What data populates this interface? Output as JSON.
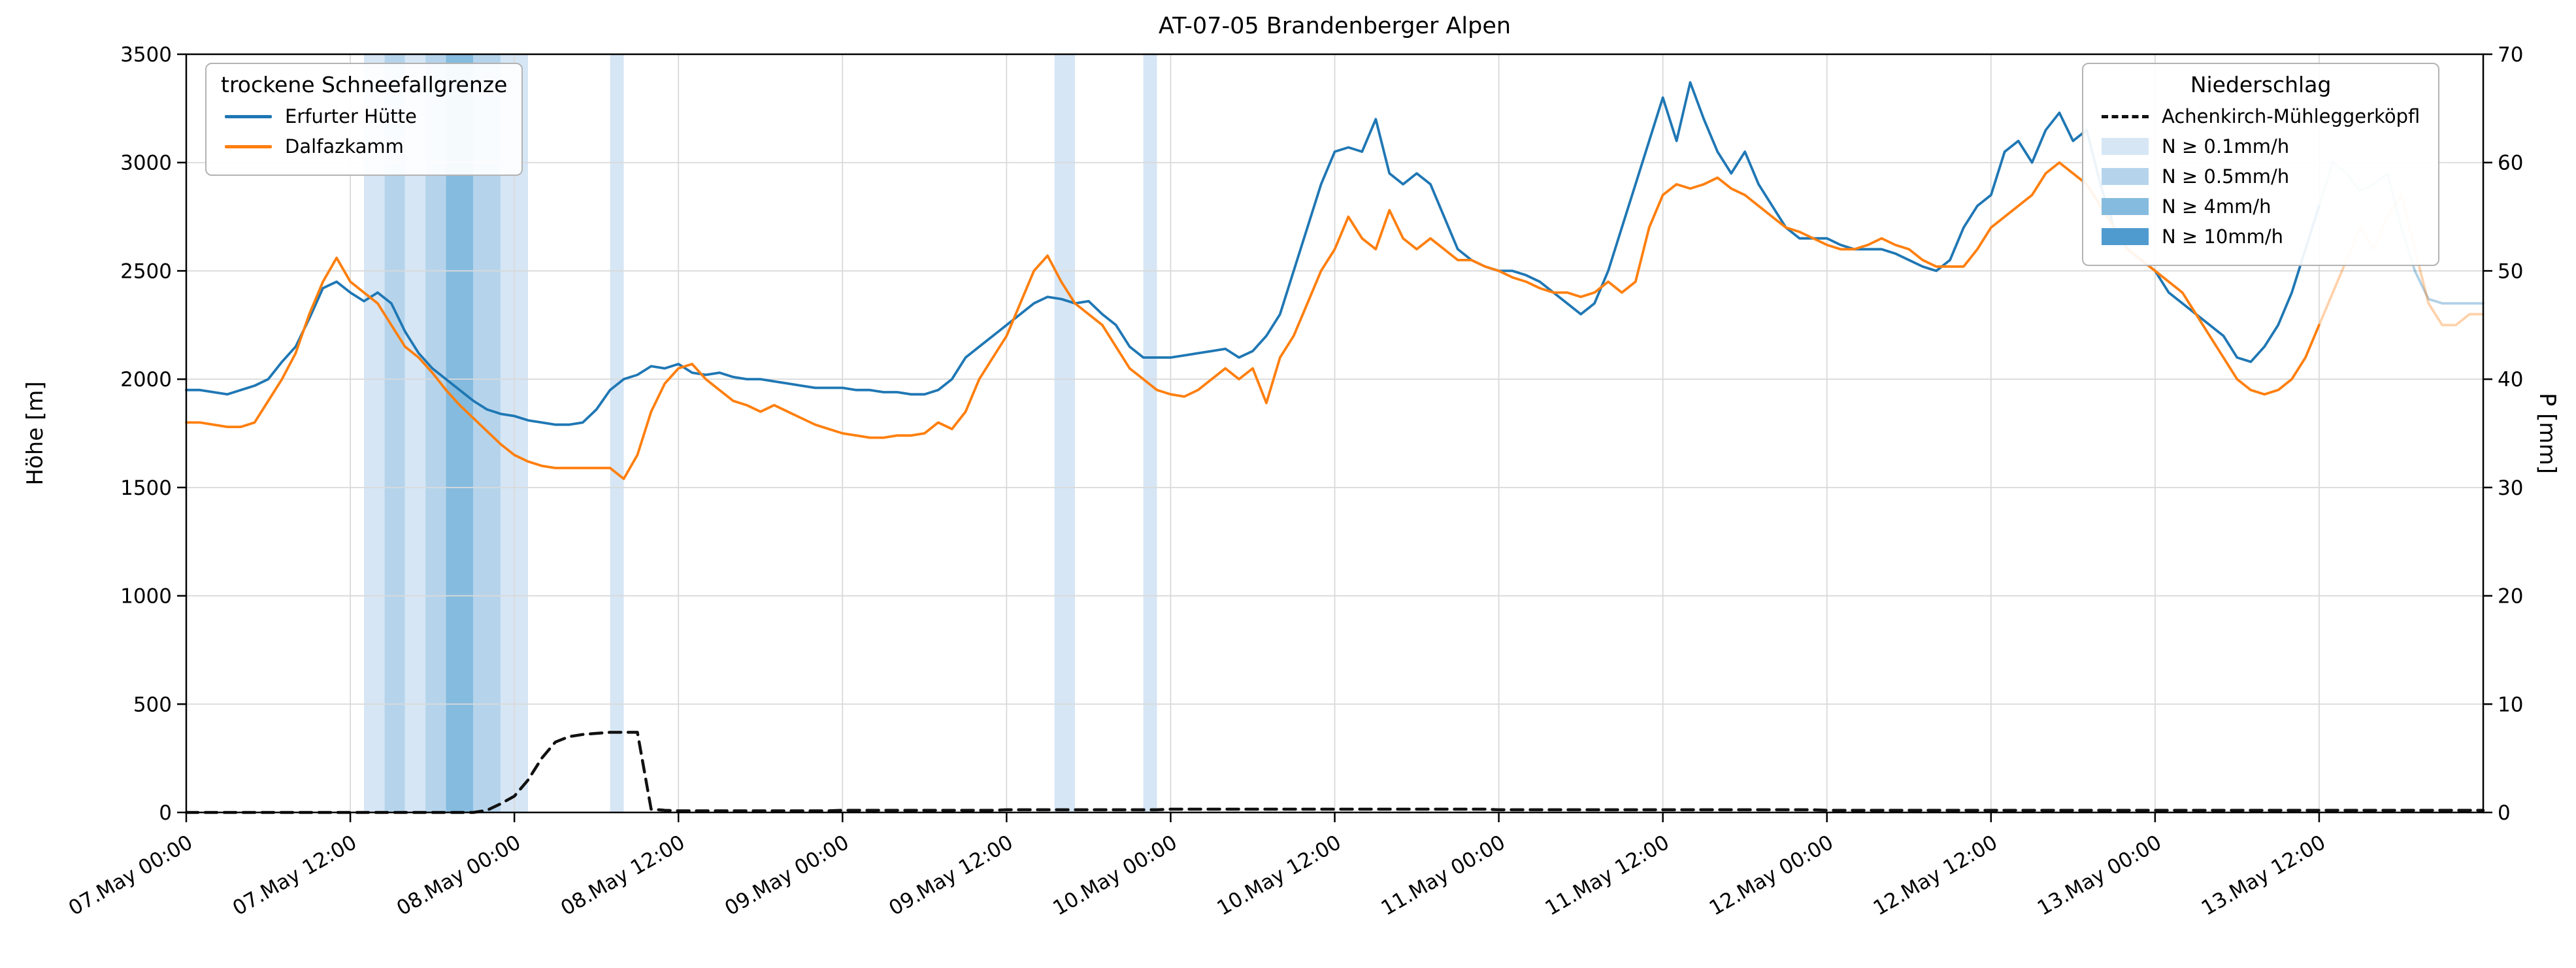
{
  "chart_data": {
    "type": "line",
    "title": "AT-07-05 Brandenberger Alpen",
    "ylabel_left": "Höhe [m]",
    "ylabel_right": "P [mm]",
    "ylim_left": [
      0,
      3500
    ],
    "ylim_right": [
      0,
      70
    ],
    "xlim_hours": [
      0,
      168
    ],
    "grid": true,
    "forecast_fade_from_hour": 156,
    "x_ticks": [
      {
        "hour": 0,
        "label": "07.May 00:00"
      },
      {
        "hour": 12,
        "label": "07.May 12:00"
      },
      {
        "hour": 24,
        "label": "08.May 00:00"
      },
      {
        "hour": 36,
        "label": "08.May 12:00"
      },
      {
        "hour": 48,
        "label": "09.May 00:00"
      },
      {
        "hour": 60,
        "label": "09.May 12:00"
      },
      {
        "hour": 72,
        "label": "10.May 00:00"
      },
      {
        "hour": 84,
        "label": "10.May 12:00"
      },
      {
        "hour": 96,
        "label": "11.May 00:00"
      },
      {
        "hour": 108,
        "label": "11.May 12:00"
      },
      {
        "hour": 120,
        "label": "12.May 00:00"
      },
      {
        "hour": 132,
        "label": "12.May 12:00"
      },
      {
        "hour": 144,
        "label": "13.May 00:00"
      },
      {
        "hour": 156,
        "label": "13.May 12:00"
      }
    ],
    "y_ticks_left": [
      0,
      500,
      1000,
      1500,
      2000,
      2500,
      3000,
      3500
    ],
    "y_ticks_right": [
      0,
      10,
      20,
      30,
      40,
      50,
      60,
      70
    ],
    "series": [
      {
        "name": "Erfurter Hütte",
        "color": "#1f77b4",
        "axis": "left",
        "dash": false,
        "x_start_hour": 0,
        "x_step_hours": 1,
        "values": [
          1950,
          1950,
          1940,
          1930,
          1950,
          1970,
          2000,
          2080,
          2150,
          2280,
          2420,
          2450,
          2400,
          2360,
          2400,
          2350,
          2220,
          2120,
          2050,
          2000,
          1950,
          1900,
          1860,
          1840,
          1830,
          1810,
          1800,
          1790,
          1790,
          1800,
          1860,
          1950,
          2000,
          2020,
          2060,
          2050,
          2070,
          2030,
          2020,
          2030,
          2010,
          2000,
          2000,
          1990,
          1980,
          1970,
          1960,
          1960,
          1960,
          1950,
          1950,
          1940,
          1940,
          1930,
          1930,
          1950,
          2000,
          2100,
          2150,
          2200,
          2250,
          2300,
          2350,
          2380,
          2370,
          2350,
          2360,
          2300,
          2250,
          2150,
          2100,
          2100,
          2100,
          2110,
          2120,
          2130,
          2140,
          2100,
          2130,
          2200,
          2300,
          2500,
          2700,
          2900,
          3050,
          3070,
          3050,
          3200,
          2950,
          2900,
          2950,
          2900,
          2750,
          2600,
          2550,
          2520,
          2500,
          2500,
          2480,
          2450,
          2400,
          2350,
          2300,
          2350,
          2500,
          2700,
          2900,
          3100,
          3300,
          3100,
          3370,
          3200,
          3050,
          2950,
          3050,
          2900,
          2800,
          2700,
          2650,
          2650,
          2650,
          2620,
          2600,
          2600,
          2600,
          2580,
          2550,
          2520,
          2500,
          2550,
          2700,
          2800,
          2850,
          3050,
          3100,
          3000,
          3150,
          3230,
          3100,
          3150,
          2900,
          2700,
          2600,
          2550,
          2500,
          2400,
          2350,
          2300,
          2250,
          2200,
          2100,
          2080,
          2150,
          2250,
          2400,
          2600,
          2800,
          3000,
          2950,
          2870,
          2900,
          2950,
          2700,
          2500,
          2370,
          2350,
          2350,
          2350,
          2350
        ]
      },
      {
        "name": "Dalfazkamm",
        "color": "#ff7f0e",
        "axis": "left",
        "dash": false,
        "x_start_hour": 0,
        "x_step_hours": 1,
        "values": [
          1800,
          1800,
          1790,
          1780,
          1780,
          1800,
          1900,
          2000,
          2120,
          2300,
          2450,
          2560,
          2450,
          2400,
          2350,
          2250,
          2150,
          2100,
          2030,
          1950,
          1880,
          1820,
          1760,
          1700,
          1650,
          1620,
          1600,
          1590,
          1590,
          1590,
          1590,
          1590,
          1540,
          1650,
          1850,
          1980,
          2050,
          2070,
          2000,
          1950,
          1900,
          1880,
          1850,
          1880,
          1850,
          1820,
          1790,
          1770,
          1750,
          1740,
          1730,
          1730,
          1740,
          1740,
          1750,
          1800,
          1770,
          1850,
          2000,
          2100,
          2200,
          2350,
          2500,
          2570,
          2450,
          2350,
          2300,
          2250,
          2150,
          2050,
          2000,
          1950,
          1930,
          1920,
          1950,
          2000,
          2050,
          2000,
          2050,
          1890,
          2100,
          2200,
          2350,
          2500,
          2600,
          2750,
          2650,
          2600,
          2780,
          2650,
          2600,
          2650,
          2600,
          2550,
          2550,
          2520,
          2500,
          2470,
          2450,
          2420,
          2400,
          2400,
          2380,
          2400,
          2450,
          2400,
          2450,
          2700,
          2850,
          2900,
          2880,
          2900,
          2930,
          2880,
          2850,
          2800,
          2750,
          2700,
          2680,
          2650,
          2620,
          2600,
          2600,
          2620,
          2650,
          2620,
          2600,
          2550,
          2520,
          2520,
          2520,
          2600,
          2700,
          2750,
          2800,
          2850,
          2950,
          3000,
          2950,
          2900,
          2800,
          2700,
          2600,
          2550,
          2500,
          2450,
          2400,
          2300,
          2200,
          2100,
          2000,
          1950,
          1930,
          1950,
          2000,
          2100,
          2250,
          2400,
          2550,
          2700,
          2600,
          2750,
          2850,
          2600,
          2350,
          2250,
          2250,
          2300,
          2300
        ]
      },
      {
        "name": "Achenkirch-Mühleggerköpfl",
        "color": "#111111",
        "axis": "right",
        "dash": true,
        "x_start_hour": 0,
        "x_step_hours": 1,
        "values": [
          0,
          0,
          0,
          0,
          0,
          0,
          0,
          0,
          0,
          0,
          0,
          0,
          0,
          0,
          0,
          0,
          0,
          0,
          0,
          0,
          0,
          0,
          0.2,
          0.8,
          1.5,
          3,
          5,
          6.5,
          7,
          7.2,
          7.3,
          7.4,
          7.4,
          7.4,
          0.3,
          0.2,
          0.15,
          0.15,
          0.15,
          0.15,
          0.15,
          0.15,
          0.15,
          0.15,
          0.15,
          0.15,
          0.15,
          0.15,
          0.2,
          0.2,
          0.2,
          0.2,
          0.2,
          0.2,
          0.2,
          0.2,
          0.2,
          0.2,
          0.2,
          0.2,
          0.25,
          0.25,
          0.25,
          0.25,
          0.25,
          0.25,
          0.25,
          0.25,
          0.25,
          0.25,
          0.25,
          0.25,
          0.3,
          0.3,
          0.3,
          0.3,
          0.3,
          0.3,
          0.3,
          0.3,
          0.3,
          0.3,
          0.3,
          0.3,
          0.3,
          0.3,
          0.3,
          0.3,
          0.3,
          0.3,
          0.3,
          0.3,
          0.3,
          0.3,
          0.3,
          0.3,
          0.25,
          0.25,
          0.25,
          0.25,
          0.25,
          0.25,
          0.25,
          0.25,
          0.25,
          0.25,
          0.25,
          0.25,
          0.25,
          0.25,
          0.25,
          0.25,
          0.25,
          0.25,
          0.25,
          0.25,
          0.25,
          0.25,
          0.25,
          0.25,
          0.2,
          0.2,
          0.2,
          0.2,
          0.2,
          0.2,
          0.2,
          0.2,
          0.2,
          0.2,
          0.2,
          0.2,
          0.2,
          0.2,
          0.2,
          0.2,
          0.2,
          0.2,
          0.2,
          0.2,
          0.2,
          0.2,
          0.2,
          0.2,
          0.2,
          0.2,
          0.2,
          0.2,
          0.2,
          0.2,
          0.2,
          0.2,
          0.2,
          0.2,
          0.2,
          0.2,
          0.2,
          0.2,
          0.2,
          0.2,
          0.2,
          0.2,
          0.2,
          0.2,
          0.2,
          0.2,
          0.2,
          0.2,
          0.2
        ]
      }
    ],
    "precip_bands": {
      "levels": [
        {
          "label": "N ≥ 0.1mm/h",
          "color": "#d6e6f5"
        },
        {
          "label": "N ≥ 0.5mm/h",
          "color": "#b5d4ec"
        },
        {
          "label": "N ≥ 4mm/h",
          "color": "#85bbde"
        },
        {
          "label": "N ≥ 10mm/h",
          "color": "#4f9bd0"
        }
      ],
      "bands": [
        {
          "from": 13,
          "to": 14.5,
          "level": 0
        },
        {
          "from": 14.5,
          "to": 16,
          "level": 1
        },
        {
          "from": 16,
          "to": 17.5,
          "level": 0
        },
        {
          "from": 17.5,
          "to": 19,
          "level": 1
        },
        {
          "from": 19,
          "to": 21,
          "level": 2
        },
        {
          "from": 21,
          "to": 23,
          "level": 1
        },
        {
          "from": 23,
          "to": 25,
          "level": 0
        },
        {
          "from": 31,
          "to": 32,
          "level": 0
        },
        {
          "from": 63.5,
          "to": 65,
          "level": 0
        },
        {
          "from": 70,
          "to": 71,
          "level": 0
        }
      ]
    },
    "legend_left": {
      "title": "trockene Schneefallgrenze",
      "items": [
        "Erfurter Hütte",
        "Dalfazkamm"
      ]
    },
    "legend_right": {
      "title": "Niederschlag",
      "items": [
        "Achenkirch-Mühleggerköpfl",
        "N ≥ 0.1mm/h",
        "N ≥ 0.5mm/h",
        "N ≥ 4mm/h",
        "N ≥ 10mm/h"
      ]
    }
  }
}
